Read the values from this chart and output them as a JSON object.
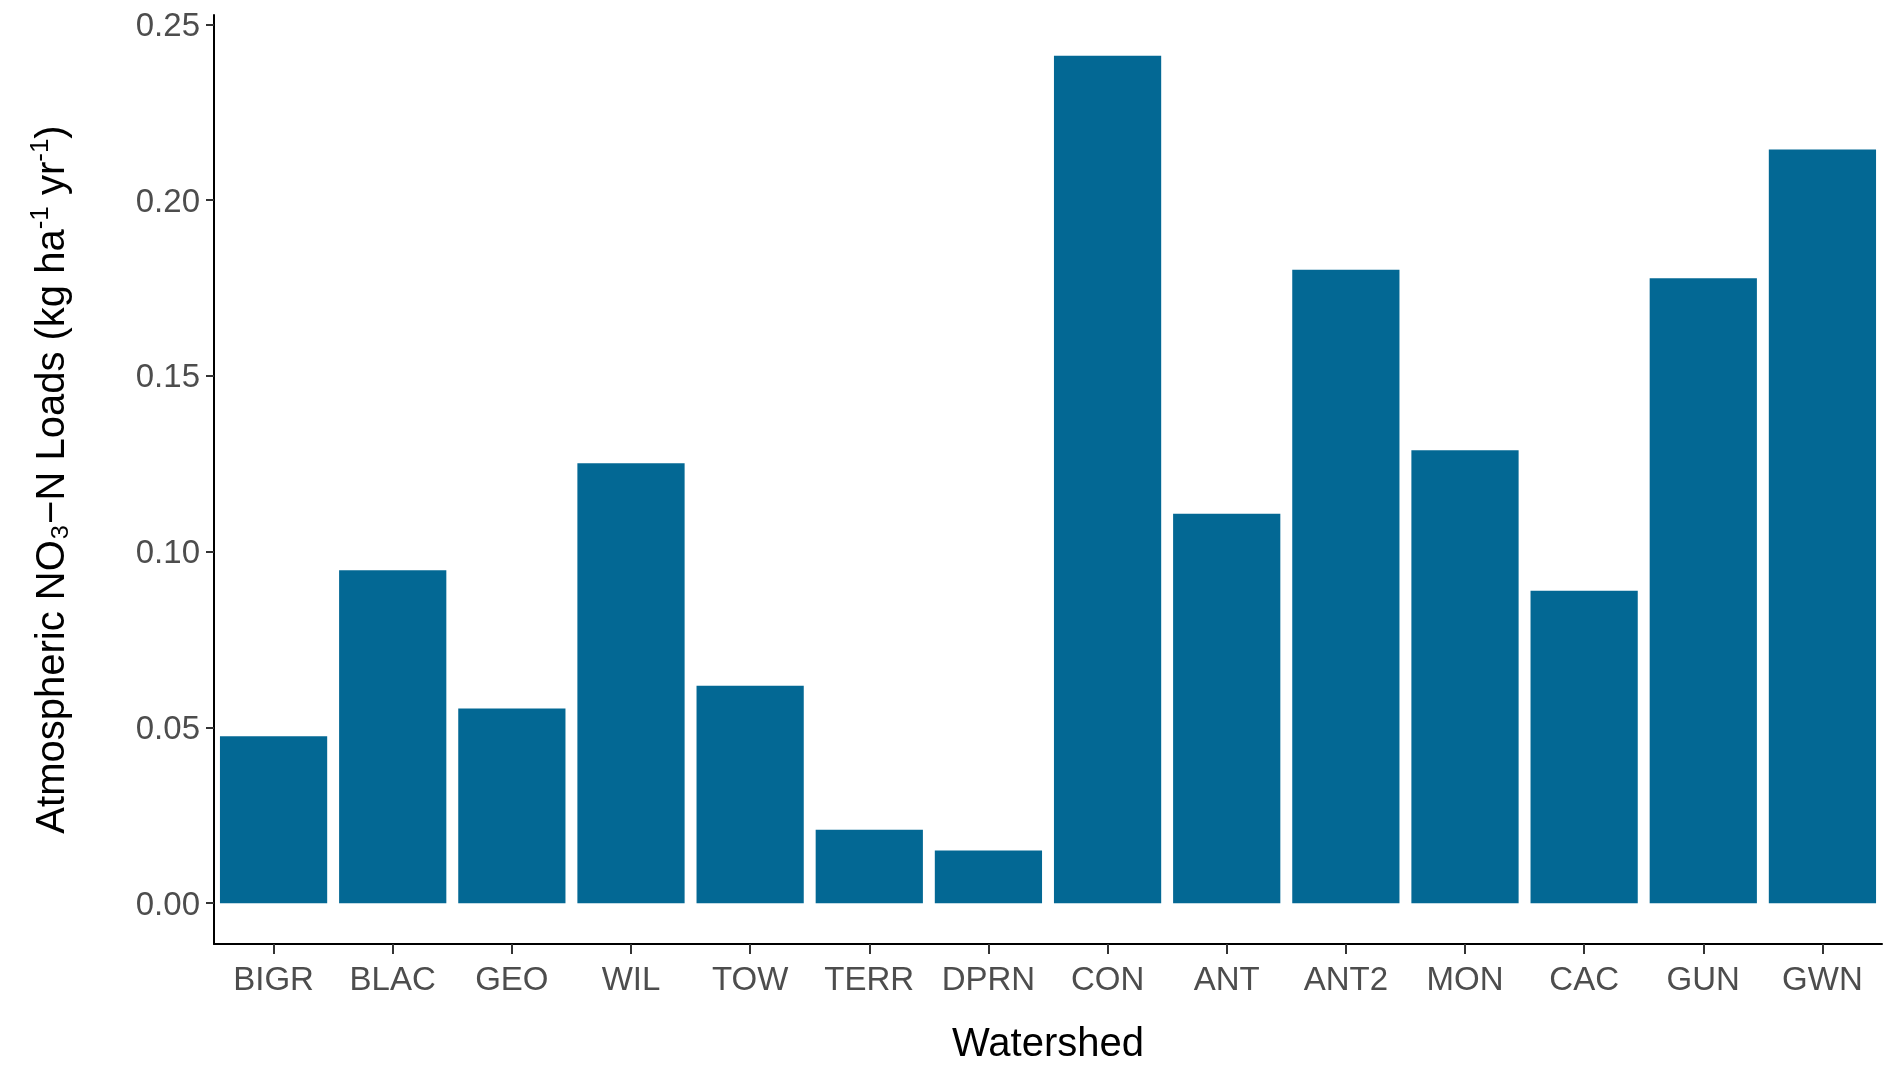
{
  "chart_data": {
    "type": "bar",
    "xlabel": "Watershed",
    "ylabel": "Atmospheric NO₃−N Loads (kg ha$^{-1}$ yr$^{-1}$)",
    "categories": [
      "BIGR",
      "BLAC",
      "GEO",
      "WIL",
      "TOW",
      "TERR",
      "DPRN",
      "CON",
      "ANT",
      "ANT2",
      "MON",
      "CAC",
      "GUN",
      "GWN"
    ],
    "series": [
      {
        "color": "#036894",
        "values": [
          0.0475,
          0.0947,
          0.0554,
          0.1252,
          0.0619,
          0.0209,
          0.015,
          0.2411,
          0.1108,
          0.1802,
          0.1289,
          0.0889,
          0.1778,
          0.2144
        ]
      }
    ],
    "ylim": [
      -0.0116,
      0.2527
    ],
    "yticks": [
      {
        "value": 0,
        "label": "0.00"
      },
      {
        "value": 0.05,
        "label": "0.05"
      },
      {
        "value": 0.1,
        "label": "0.10"
      },
      {
        "value": 0.15,
        "label": "0.15"
      },
      {
        "value": 0.2,
        "label": "0.20"
      },
      {
        "value": 0.25,
        "label": "0.25"
      }
    ],
    "grid": false
  }
}
